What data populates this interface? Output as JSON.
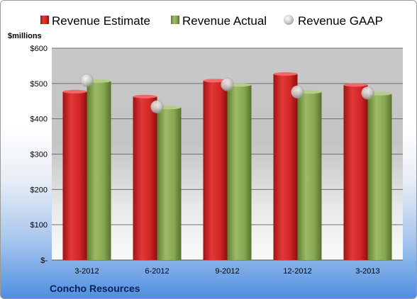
{
  "chart_data": {
    "type": "bar",
    "categories": [
      "3-2012",
      "6-2012",
      "9-2012",
      "12-2012",
      "3-2013"
    ],
    "series": [
      {
        "name": "Revenue Estimate",
        "kind": "bar",
        "color": "#d42a2a",
        "values": [
          477,
          463,
          508,
          527,
          496
        ]
      },
      {
        "name": "Revenue Actual",
        "kind": "bar",
        "color": "#8cad55",
        "values": [
          507,
          432,
          496,
          476,
          471
        ]
      },
      {
        "name": "Revenue GAAP",
        "kind": "marker",
        "color": "#c8c8c8",
        "values": [
          509,
          434,
          497,
          476,
          473
        ]
      }
    ],
    "yunit_label": "$millions",
    "ylim": [
      0,
      600
    ],
    "yticks": [
      0,
      100,
      200,
      300,
      400,
      500,
      600
    ],
    "ytick_labels": [
      "$-",
      "$100",
      "$200",
      "$300",
      "$400",
      "$500",
      "$600"
    ],
    "grid": true,
    "legend_position": "top",
    "company": "Concho Resources"
  }
}
